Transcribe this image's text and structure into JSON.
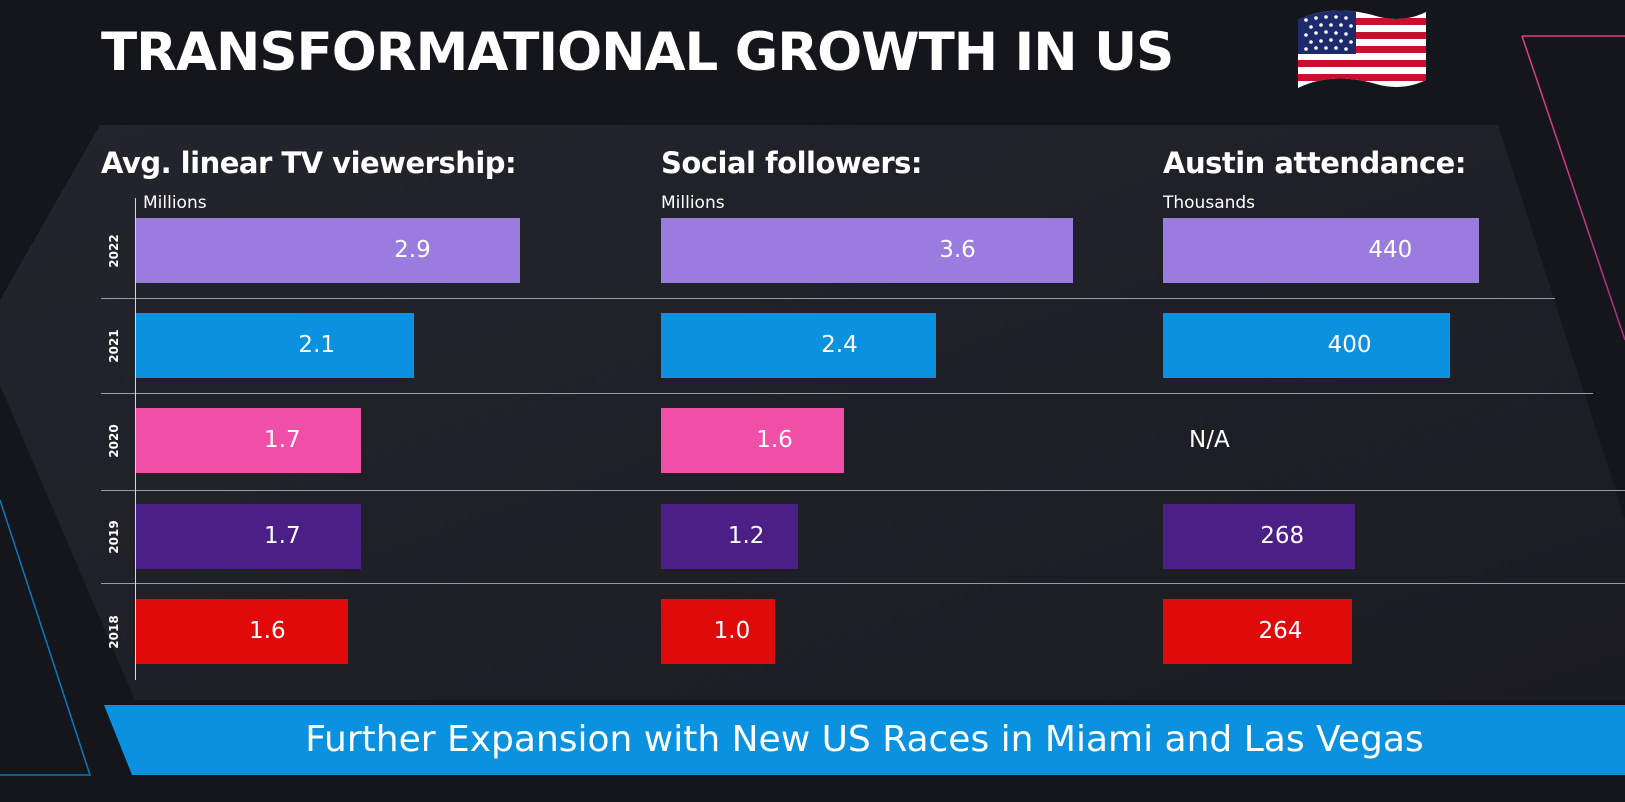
{
  "title": "TRANSFORMATIONAL GROWTH IN US",
  "flag_icon": "us-flag-icon",
  "banner": "Further Expansion with New US Races in Miami and Las Vegas",
  "colors": {
    "background": "#15161b",
    "2022": "#9a7be0",
    "2021": "#0a91e0",
    "2020": "#f04fa8",
    "2019": "#4a1f86",
    "2018": "#e00a0a",
    "banner": "#0a91e0"
  },
  "chart_data": [
    {
      "type": "bar",
      "title": "Avg. linear TV viewership:",
      "unit": "Millions",
      "categories": [
        "2022",
        "2021",
        "2020",
        "2019",
        "2018"
      ],
      "values": [
        2.9,
        2.1,
        1.7,
        1.7,
        1.6
      ],
      "labels": [
        "2.9",
        "2.1",
        "1.7",
        "1.7",
        "1.6"
      ]
    },
    {
      "type": "bar",
      "title": "Social followers:",
      "unit": "Millions",
      "categories": [
        "2022",
        "2021",
        "2020",
        "2019",
        "2018"
      ],
      "values": [
        3.6,
        2.4,
        1.6,
        1.2,
        1.0
      ],
      "labels": [
        "3.6",
        "2.4",
        "1.6",
        "1.2",
        "1.0"
      ]
    },
    {
      "type": "bar",
      "title": "Austin attendance:",
      "unit": "Thousands",
      "categories": [
        "2022",
        "2021",
        "2020",
        "2019",
        "2018"
      ],
      "values": [
        440,
        400,
        null,
        268,
        264
      ],
      "labels": [
        "440",
        "400",
        "N/A",
        "268",
        "264"
      ]
    }
  ]
}
